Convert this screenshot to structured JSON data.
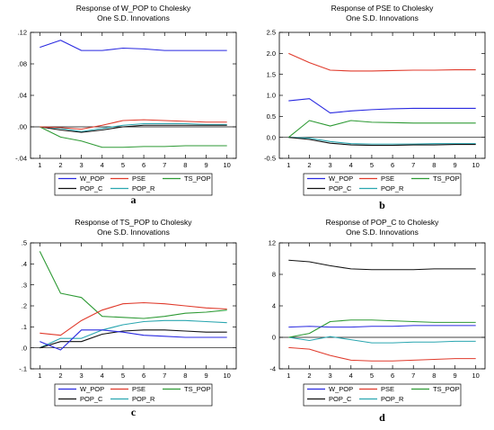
{
  "colors": {
    "W_POP": "#2929e0",
    "PSE": "#e03a2b",
    "TS_POP": "#2e9a35",
    "POP_C": "#111111",
    "POP_R": "#2aa6b0"
  },
  "legend_entries": [
    "W_POP",
    "PSE",
    "TS_POP",
    "POP_C",
    "POP_R"
  ],
  "chart_data": [
    {
      "type": "line",
      "title_line1": "Response of W_POP to Cholesky",
      "title_line2": "One S.D. Innovations",
      "caption": "a",
      "x": [
        1,
        2,
        3,
        4,
        5,
        6,
        7,
        8,
        9,
        10
      ],
      "ylim": [
        -0.04,
        0.12
      ],
      "yticks": [
        -0.04,
        0.0,
        0.04,
        0.08,
        0.12
      ],
      "ytick_labels": [
        "-.04",
        ".00",
        ".04",
        ".08",
        ".12"
      ],
      "zero_line": true,
      "series": [
        {
          "name": "W_POP",
          "values": [
            0.101,
            0.11,
            0.097,
            0.097,
            0.1,
            0.099,
            0.097,
            0.097,
            0.097,
            0.097
          ]
        },
        {
          "name": "PSE",
          "values": [
            0.0,
            -0.001,
            -0.003,
            0.002,
            0.008,
            0.009,
            0.008,
            0.007,
            0.006,
            0.006
          ]
        },
        {
          "name": "TS_POP",
          "values": [
            0.0,
            -0.013,
            -0.018,
            -0.026,
            -0.026,
            -0.025,
            -0.025,
            -0.024,
            -0.024,
            -0.024
          ]
        },
        {
          "name": "POP_C",
          "values": [
            0.0,
            -0.004,
            -0.007,
            -0.004,
            0.0,
            0.002,
            0.002,
            0.002,
            0.002,
            0.002
          ]
        },
        {
          "name": "POP_R",
          "values": [
            0.0,
            -0.002,
            -0.006,
            -0.002,
            0.002,
            0.004,
            0.004,
            0.004,
            0.003,
            0.003
          ]
        }
      ]
    },
    {
      "type": "line",
      "title_line1": "Response of PSE to Cholesky",
      "title_line2": "One S.D. Innovations",
      "caption": "b",
      "x": [
        1,
        2,
        3,
        4,
        5,
        6,
        7,
        8,
        9,
        10
      ],
      "ylim": [
        -0.5,
        2.5
      ],
      "yticks": [
        -0.5,
        0.0,
        0.5,
        1.0,
        1.5,
        2.0,
        2.5
      ],
      "ytick_labels": [
        "-0.5",
        "0.0",
        "0.5",
        "1.0",
        "1.5",
        "2.0",
        "2.5"
      ],
      "zero_line": true,
      "series": [
        {
          "name": "W_POP",
          "values": [
            0.87,
            0.92,
            0.58,
            0.63,
            0.66,
            0.68,
            0.69,
            0.69,
            0.69,
            0.69
          ]
        },
        {
          "name": "PSE",
          "values": [
            2.0,
            1.78,
            1.6,
            1.58,
            1.58,
            1.59,
            1.6,
            1.6,
            1.61,
            1.61
          ]
        },
        {
          "name": "TS_POP",
          "values": [
            0.0,
            0.4,
            0.27,
            0.4,
            0.36,
            0.35,
            0.34,
            0.34,
            0.34,
            0.34
          ]
        },
        {
          "name": "POP_C",
          "values": [
            0.0,
            -0.05,
            -0.14,
            -0.18,
            -0.19,
            -0.19,
            -0.18,
            -0.18,
            -0.17,
            -0.17
          ]
        },
        {
          "name": "POP_R",
          "values": [
            0.0,
            -0.02,
            -0.1,
            -0.15,
            -0.16,
            -0.16,
            -0.16,
            -0.15,
            -0.15,
            -0.15
          ]
        }
      ]
    },
    {
      "type": "line",
      "title_line1": "Response of TS_POP to Cholesky",
      "title_line2": "One S.D. Innovations",
      "caption": "c",
      "x": [
        1,
        2,
        3,
        4,
        5,
        6,
        7,
        8,
        9,
        10
      ],
      "ylim": [
        -0.1,
        0.5
      ],
      "yticks": [
        -0.1,
        0.0,
        0.1,
        0.2,
        0.3,
        0.4,
        0.5
      ],
      "ytick_labels": [
        "-.1",
        ".0",
        ".1",
        ".2",
        ".3",
        ".4",
        ".5"
      ],
      "zero_line": true,
      "series": [
        {
          "name": "W_POP",
          "values": [
            0.03,
            -0.01,
            0.085,
            0.085,
            0.075,
            0.06,
            0.055,
            0.05,
            0.05,
            0.05
          ]
        },
        {
          "name": "PSE",
          "values": [
            0.07,
            0.06,
            0.13,
            0.18,
            0.21,
            0.215,
            0.21,
            0.2,
            0.19,
            0.185
          ]
        },
        {
          "name": "TS_POP",
          "values": [
            0.46,
            0.26,
            0.24,
            0.15,
            0.145,
            0.14,
            0.15,
            0.165,
            0.17,
            0.18
          ]
        },
        {
          "name": "POP_C",
          "values": [
            0.0,
            0.03,
            0.03,
            0.065,
            0.08,
            0.085,
            0.085,
            0.08,
            0.075,
            0.075
          ]
        },
        {
          "name": "POP_R",
          "values": [
            0.0,
            0.045,
            0.045,
            0.085,
            0.11,
            0.125,
            0.13,
            0.13,
            0.125,
            0.12
          ]
        }
      ]
    },
    {
      "type": "line",
      "title_line1": "Response of POP_C to Cholesky",
      "title_line2": "One S.D. Innovations",
      "caption": "d",
      "x": [
        1,
        2,
        3,
        4,
        5,
        6,
        7,
        8,
        9,
        10
      ],
      "ylim": [
        -4,
        12
      ],
      "yticks": [
        -4,
        0,
        4,
        8,
        12
      ],
      "ytick_labels": [
        "-4",
        "0",
        "4",
        "8",
        "12"
      ],
      "zero_line": true,
      "series": [
        {
          "name": "W_POP",
          "values": [
            1.3,
            1.4,
            1.3,
            1.3,
            1.4,
            1.4,
            1.5,
            1.5,
            1.5,
            1.5
          ]
        },
        {
          "name": "PSE",
          "values": [
            -1.3,
            -1.5,
            -2.3,
            -2.9,
            -3.0,
            -3.0,
            -2.9,
            -2.8,
            -2.7,
            -2.7
          ]
        },
        {
          "name": "TS_POP",
          "values": [
            0.0,
            0.5,
            2.0,
            2.2,
            2.2,
            2.1,
            2.0,
            1.9,
            1.9,
            1.9
          ]
        },
        {
          "name": "POP_C",
          "values": [
            9.8,
            9.6,
            9.1,
            8.7,
            8.6,
            8.6,
            8.6,
            8.7,
            8.7,
            8.7
          ]
        },
        {
          "name": "POP_R",
          "values": [
            0.0,
            -0.4,
            0.1,
            -0.3,
            -0.7,
            -0.7,
            -0.6,
            -0.6,
            -0.5,
            -0.5
          ]
        }
      ]
    }
  ]
}
